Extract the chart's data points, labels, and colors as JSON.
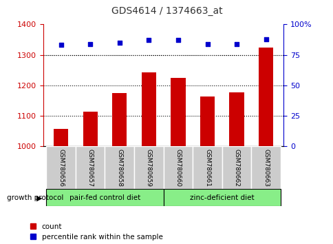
{
  "title": "GDS4614 / 1374663_at",
  "samples": [
    "GSM780656",
    "GSM780657",
    "GSM780658",
    "GSM780659",
    "GSM780660",
    "GSM780661",
    "GSM780662",
    "GSM780663"
  ],
  "counts": [
    1058,
    1115,
    1175,
    1243,
    1225,
    1163,
    1177,
    1325
  ],
  "percentiles": [
    83,
    84,
    85,
    87,
    87,
    84,
    84,
    88
  ],
  "ylim_left": [
    1000,
    1400
  ],
  "ylim_right": [
    0,
    100
  ],
  "yticks_left": [
    1000,
    1100,
    1200,
    1300,
    1400
  ],
  "yticks_right": [
    0,
    25,
    50,
    75,
    100
  ],
  "ytick_right_labels": [
    "0",
    "25",
    "50",
    "75",
    "100%"
  ],
  "bar_color": "#cc0000",
  "dot_color": "#0000cc",
  "group1_label": "pair-fed control diet",
  "group2_label": "zinc-deficient diet",
  "group1_indices": [
    0,
    1,
    2,
    3
  ],
  "group2_indices": [
    4,
    5,
    6,
    7
  ],
  "group_color": "#88ee88",
  "group_protocol_label": "growth protocol",
  "left_tick_color": "#cc0000",
  "right_tick_color": "#0000cc",
  "tick_label_bg": "#cccccc",
  "legend_count_label": "count",
  "legend_percentile_label": "percentile rank within the sample",
  "title_color": "#333333",
  "grid_color": "#000000"
}
